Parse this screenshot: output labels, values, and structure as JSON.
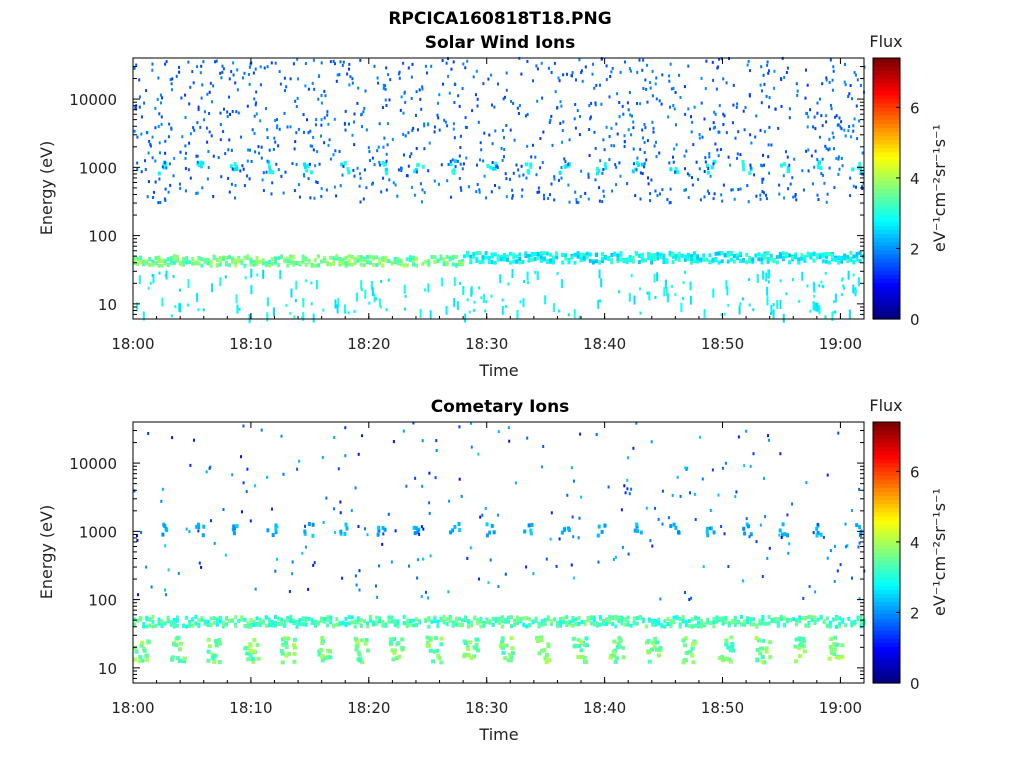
{
  "figure": {
    "title": "RPCICA160818T18.PNG"
  },
  "colorbar": {
    "label": "Flux",
    "unit_text": "eV⁻¹cm⁻²sr⁻¹s⁻¹",
    "min": 0,
    "max": 7.4,
    "ticks": [
      0,
      2,
      4,
      6
    ],
    "colormap": "jet"
  },
  "chart_data": [
    {
      "type": "heatmap",
      "title": "Solar Wind Ions",
      "xlabel": "Time",
      "ylabel": "Energy (eV)",
      "xlim": [
        "18:00",
        "19:02"
      ],
      "x_ticks": [
        "18:00",
        "18:10",
        "18:20",
        "18:30",
        "18:40",
        "18:50",
        "19:00"
      ],
      "ylim": [
        6,
        40000
      ],
      "yscale": "log",
      "y_ticks": [
        10,
        100,
        1000,
        10000
      ],
      "color_scale": [
        0,
        7.4
      ],
      "features": [
        {
          "type": "band",
          "energy_range": [
            36,
            50
          ],
          "time_range": [
            "18:00",
            "18:28"
          ],
          "flux": 3.6
        },
        {
          "type": "band",
          "energy_range": [
            40,
            56
          ],
          "time_range": [
            "18:28",
            "19:02"
          ],
          "flux": 2.8
        },
        {
          "type": "periodic_spots",
          "energy": 1000,
          "period_min": 3.1,
          "start": "18:02",
          "flux": 2.8
        },
        {
          "type": "scatter",
          "energy_range": [
            300,
            40000
          ],
          "flux_range": [
            1.3,
            2.0
          ]
        },
        {
          "type": "scatter",
          "energy_range": [
            6,
            30
          ],
          "flux_range": [
            2.5,
            3.0
          ]
        }
      ]
    },
    {
      "type": "heatmap",
      "title": "Cometary Ions",
      "xlabel": "Time",
      "ylabel": "Energy (eV)",
      "xlim": [
        "18:00",
        "19:02"
      ],
      "x_ticks": [
        "18:00",
        "18:10",
        "18:20",
        "18:30",
        "18:40",
        "18:50",
        "19:00"
      ],
      "ylim": [
        6,
        40000
      ],
      "yscale": "log",
      "y_ticks": [
        10,
        100,
        1000,
        10000
      ],
      "color_scale": [
        0,
        7.4
      ],
      "features": [
        {
          "type": "band",
          "energy_range": [
            40,
            56
          ],
          "time_range": [
            "18:00",
            "19:02"
          ],
          "flux": 3.3
        },
        {
          "type": "periodic_blocks",
          "energy_range": [
            12,
            28
          ],
          "period_min": 3.1,
          "start": "18:00",
          "flux": 3.6
        },
        {
          "type": "periodic_spots",
          "energy": 1050,
          "period_min": 3.1,
          "start": "18:02",
          "flux": 2.2
        },
        {
          "type": "scatter",
          "energy_range": [
            100,
            40000
          ],
          "flux_range": [
            1.0,
            2.5
          ]
        }
      ]
    }
  ]
}
